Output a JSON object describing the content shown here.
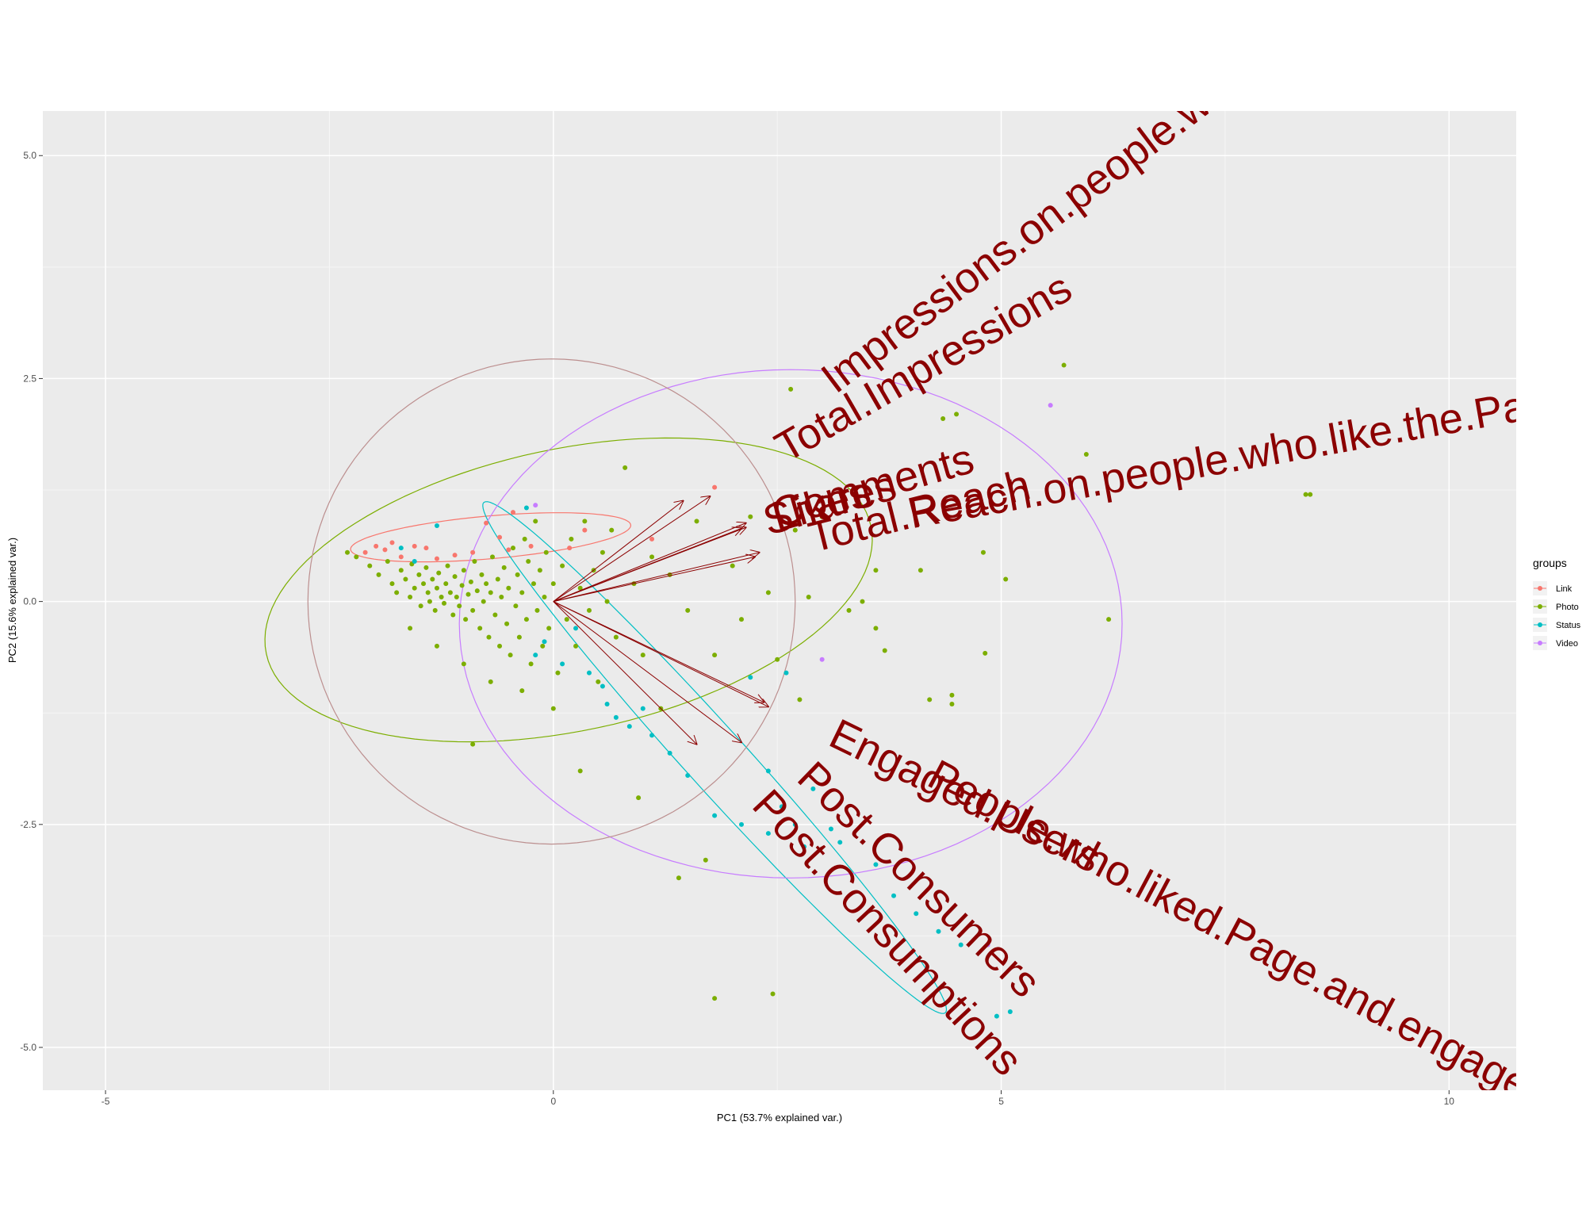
{
  "chart_data": {
    "type": "scatter",
    "title": "",
    "xlabel": "PC1 (53.7% explained var.)",
    "ylabel": "PC2 (15.6% explained var.)",
    "xlim": [
      -5.7,
      10.75
    ],
    "ylim": [
      -5.48,
      5.5
    ],
    "x_ticks": [
      -5,
      0,
      5,
      10
    ],
    "y_ticks": [
      -5.0,
      -2.5,
      0.0,
      2.5,
      5.0
    ],
    "x_tick_labels": [
      "-5",
      "0",
      "5",
      "10"
    ],
    "y_tick_labels": [
      "-5.0",
      "-2.5",
      "0.0",
      "2.5",
      "5.0"
    ],
    "grid": true,
    "legend": {
      "title": "groups",
      "placement": "right",
      "entries": [
        {
          "name": "Link",
          "color": "#F8766D"
        },
        {
          "name": "Photo",
          "color": "#7CAE00"
        },
        {
          "name": "Status",
          "color": "#00BFC4"
        },
        {
          "name": "Video",
          "color": "#C77CFF"
        }
      ]
    },
    "series": [
      {
        "name": "Link",
        "color": "#F8766D",
        "points": [
          [
            -2.1,
            0.55
          ],
          [
            -1.98,
            0.62
          ],
          [
            -1.88,
            0.58
          ],
          [
            -1.8,
            0.66
          ],
          [
            -1.7,
            0.5
          ],
          [
            -1.55,
            0.62
          ],
          [
            -1.42,
            0.6
          ],
          [
            -1.3,
            0.48
          ],
          [
            -1.1,
            0.52
          ],
          [
            -0.9,
            0.55
          ],
          [
            -0.75,
            0.88
          ],
          [
            -0.6,
            0.72
          ],
          [
            -0.5,
            0.58
          ],
          [
            -0.45,
            1.0
          ],
          [
            -0.25,
            0.62
          ],
          [
            0.18,
            0.6
          ],
          [
            0.35,
            0.8
          ],
          [
            1.1,
            0.7
          ],
          [
            1.8,
            1.28
          ]
        ]
      },
      {
        "name": "Photo",
        "color": "#7CAE00",
        "points": [
          [
            -2.3,
            0.55
          ],
          [
            -2.2,
            0.5
          ],
          [
            -2.05,
            0.4
          ],
          [
            -1.95,
            0.3
          ],
          [
            -1.85,
            0.45
          ],
          [
            -1.8,
            0.2
          ],
          [
            -1.75,
            0.1
          ],
          [
            -1.7,
            0.35
          ],
          [
            -1.65,
            0.25
          ],
          [
            -1.6,
            0.05
          ],
          [
            -1.58,
            0.42
          ],
          [
            -1.55,
            0.15
          ],
          [
            -1.5,
            0.3
          ],
          [
            -1.48,
            -0.05
          ],
          [
            -1.45,
            0.2
          ],
          [
            -1.42,
            0.38
          ],
          [
            -1.4,
            0.1
          ],
          [
            -1.38,
            0.0
          ],
          [
            -1.35,
            0.25
          ],
          [
            -1.32,
            -0.1
          ],
          [
            -1.3,
            0.15
          ],
          [
            -1.28,
            0.32
          ],
          [
            -1.25,
            0.05
          ],
          [
            -1.22,
            -0.02
          ],
          [
            -1.2,
            0.2
          ],
          [
            -1.18,
            0.4
          ],
          [
            -1.15,
            0.1
          ],
          [
            -1.12,
            -0.15
          ],
          [
            -1.1,
            0.28
          ],
          [
            -1.08,
            0.05
          ],
          [
            -1.05,
            -0.05
          ],
          [
            -1.02,
            0.18
          ],
          [
            -1.0,
            0.35
          ],
          [
            -0.98,
            -0.2
          ],
          [
            -0.95,
            0.08
          ],
          [
            -0.92,
            0.22
          ],
          [
            -0.9,
            -0.1
          ],
          [
            -0.88,
            0.45
          ],
          [
            -0.85,
            0.12
          ],
          [
            -0.82,
            -0.3
          ],
          [
            -0.8,
            0.3
          ],
          [
            -0.78,
            0.0
          ],
          [
            -0.75,
            0.2
          ],
          [
            -0.72,
            -0.4
          ],
          [
            -0.7,
            0.1
          ],
          [
            -0.68,
            0.5
          ],
          [
            -0.65,
            -0.15
          ],
          [
            -0.62,
            0.25
          ],
          [
            -0.6,
            -0.5
          ],
          [
            -0.58,
            0.05
          ],
          [
            -0.55,
            0.38
          ],
          [
            -0.52,
            -0.25
          ],
          [
            -0.5,
            0.15
          ],
          [
            -0.48,
            -0.6
          ],
          [
            -0.45,
            0.6
          ],
          [
            -0.42,
            -0.05
          ],
          [
            -0.4,
            0.3
          ],
          [
            -0.38,
            -0.4
          ],
          [
            -0.35,
            0.1
          ],
          [
            -0.32,
            0.7
          ],
          [
            -0.3,
            -0.2
          ],
          [
            -0.28,
            0.45
          ],
          [
            -0.25,
            -0.7
          ],
          [
            -0.22,
            0.2
          ],
          [
            -0.2,
            0.9
          ],
          [
            -0.18,
            -0.1
          ],
          [
            -0.15,
            0.35
          ],
          [
            -0.12,
            -0.5
          ],
          [
            -0.1,
            0.05
          ],
          [
            -0.08,
            0.55
          ],
          [
            -0.05,
            -0.3
          ],
          [
            0.0,
            0.2
          ],
          [
            0.05,
            -0.8
          ],
          [
            0.1,
            0.4
          ],
          [
            0.15,
            -0.2
          ],
          [
            0.2,
            0.7
          ],
          [
            0.25,
            -0.5
          ],
          [
            0.3,
            0.15
          ],
          [
            0.35,
            0.9
          ],
          [
            0.4,
            -0.1
          ],
          [
            0.45,
            0.35
          ],
          [
            0.5,
            -0.9
          ],
          [
            0.55,
            0.55
          ],
          [
            0.6,
            0.0
          ],
          [
            0.65,
            0.8
          ],
          [
            0.7,
            -0.4
          ],
          [
            0.8,
            1.5
          ],
          [
            0.9,
            0.2
          ],
          [
            1.0,
            -0.6
          ],
          [
            1.1,
            0.5
          ],
          [
            1.2,
            -1.2
          ],
          [
            1.3,
            0.3
          ],
          [
            1.5,
            -0.1
          ],
          [
            1.6,
            0.9
          ],
          [
            1.8,
            -0.6
          ],
          [
            2.0,
            0.4
          ],
          [
            2.1,
            -0.2
          ],
          [
            2.2,
            0.95
          ],
          [
            2.4,
            0.1
          ],
          [
            2.5,
            -0.65
          ],
          [
            2.65,
            2.38
          ],
          [
            2.7,
            0.8
          ],
          [
            2.75,
            -1.1
          ],
          [
            2.85,
            0.05
          ],
          [
            3.0,
            0.95
          ],
          [
            3.3,
            -0.1
          ],
          [
            3.45,
            0.0
          ],
          [
            3.6,
            0.35
          ],
          [
            3.6,
            -0.3
          ],
          [
            3.7,
            -0.55
          ],
          [
            4.1,
            0.35
          ],
          [
            4.2,
            -1.1
          ],
          [
            4.35,
            2.05
          ],
          [
            4.5,
            2.1
          ],
          [
            4.45,
            -1.05
          ],
          [
            4.45,
            -1.15
          ],
          [
            4.8,
            0.55
          ],
          [
            4.82,
            -0.58
          ],
          [
            5.05,
            0.25
          ],
          [
            5.7,
            2.65
          ],
          [
            5.95,
            1.65
          ],
          [
            6.2,
            -0.2
          ],
          [
            8.4,
            1.2
          ],
          [
            8.45,
            1.2
          ],
          [
            -0.9,
            -1.6
          ],
          [
            0.3,
            -1.9
          ],
          [
            1.4,
            -3.1
          ],
          [
            1.7,
            -2.9
          ],
          [
            1.8,
            -4.45
          ],
          [
            2.45,
            -4.4
          ],
          [
            0.95,
            -2.2
          ],
          [
            -1.6,
            -0.3
          ],
          [
            -1.3,
            -0.5
          ],
          [
            -1.0,
            -0.7
          ],
          [
            -0.7,
            -0.9
          ],
          [
            -0.35,
            -1.0
          ],
          [
            0.0,
            -1.2
          ]
        ]
      },
      {
        "name": "Status",
        "color": "#00BFC4",
        "points": [
          [
            -1.7,
            0.6
          ],
          [
            -1.55,
            0.45
          ],
          [
            -1.3,
            0.85
          ],
          [
            -0.3,
            1.05
          ],
          [
            -0.2,
            -0.6
          ],
          [
            -0.1,
            -0.45
          ],
          [
            0.1,
            -0.7
          ],
          [
            0.25,
            -0.3
          ],
          [
            0.4,
            -0.8
          ],
          [
            0.55,
            -0.95
          ],
          [
            0.6,
            -1.15
          ],
          [
            0.7,
            -1.3
          ],
          [
            0.85,
            -1.4
          ],
          [
            1.0,
            -1.2
          ],
          [
            1.1,
            -1.5
          ],
          [
            1.3,
            -1.7
          ],
          [
            1.5,
            -1.95
          ],
          [
            1.8,
            -2.4
          ],
          [
            2.1,
            -2.5
          ],
          [
            2.4,
            -2.6
          ],
          [
            2.4,
            -1.9
          ],
          [
            2.55,
            -2.3
          ],
          [
            2.7,
            -2.5
          ],
          [
            2.8,
            -2.75
          ],
          [
            2.9,
            -2.1
          ],
          [
            3.1,
            -2.55
          ],
          [
            3.2,
            -2.7
          ],
          [
            3.6,
            -2.95
          ],
          [
            3.8,
            -3.3
          ],
          [
            4.05,
            -3.5
          ],
          [
            4.3,
            -3.7
          ],
          [
            4.55,
            -3.85
          ],
          [
            4.95,
            -4.65
          ],
          [
            5.1,
            -4.6
          ],
          [
            2.2,
            -0.85
          ],
          [
            2.6,
            -0.8
          ]
        ]
      },
      {
        "name": "Video",
        "color": "#C77CFF",
        "points": [
          [
            -0.2,
            1.08
          ],
          [
            3.0,
            -0.65
          ],
          [
            4.85,
            -3.85
          ],
          [
            5.55,
            2.2
          ]
        ]
      }
    ],
    "ellipses": [
      {
        "group": "Link",
        "color": "#F8766D",
        "cx": -0.7,
        "cy": 0.72,
        "rx": 1.57,
        "ry": 0.24,
        "angle": 5
      },
      {
        "group": "Photo",
        "color": "#7CAE00",
        "cx": 0.17,
        "cy": 0.13,
        "rx": 3.45,
        "ry": 1.58,
        "angle": 12
      },
      {
        "group": "Status",
        "color": "#00BFC4",
        "cx": 1.8,
        "cy": -1.75,
        "rx": 3.85,
        "ry": 0.34,
        "angle": -48
      },
      {
        "group": "Video",
        "color": "#C77CFF",
        "cx": 2.65,
        "cy": -0.25,
        "rx": 3.7,
        "ry": 2.85,
        "angle": 0
      },
      {
        "group": "",
        "color": "#BC8F8F",
        "cx": -0.02,
        "cy": 0.0,
        "rx": 2.72,
        "ry": 2.72,
        "angle": 0
      }
    ],
    "loadings": [
      {
        "label": "Impressions.on.people.who",
        "x": 1.75,
        "y": 1.18,
        "lx": 3.15,
        "ly": 2.32,
        "angle": -37
      },
      {
        "label": "Total.Impressions",
        "x": 1.45,
        "y": 1.13,
        "lx": 2.6,
        "ly": 1.55,
        "angle": -30
      },
      {
        "label": "Comments",
        "x": 2.15,
        "y": 0.88,
        "lx": 2.5,
        "ly": 0.82,
        "angle": -16
      },
      {
        "label": "Likes",
        "x": 2.15,
        "y": 0.83,
        "lx": 2.5,
        "ly": 0.78,
        "angle": -16
      },
      {
        "label": "Shares",
        "x": 2.1,
        "y": 0.82,
        "lx": 2.4,
        "ly": 0.74,
        "angle": -16
      },
      {
        "label": "Total.Reach",
        "x": 2.3,
        "y": 0.55,
        "lx": 2.9,
        "ly": 0.55,
        "angle": -14
      },
      {
        "label": "Reach.on.people.who.like.the.Page",
        "x": 2.25,
        "y": 0.5,
        "lx": 4.0,
        "ly": 0.82,
        "angle": -10
      },
      {
        "label": "Engaged.Users",
        "x": 2.4,
        "y": -1.18,
        "lx": 3.05,
        "ly": -1.6,
        "angle": 26
      },
      {
        "label": "People.who.liked.Page.and.engaged.with.post",
        "x": 2.35,
        "y": -1.13,
        "lx": 4.15,
        "ly": -2.05,
        "angle": 28
      },
      {
        "label": "Post.Consumers",
        "x": 2.1,
        "y": -1.58,
        "lx": 2.7,
        "ly": -2.0,
        "angle": 44
      },
      {
        "label": "Post.Consumptions",
        "x": 1.6,
        "y": -1.6,
        "lx": 2.2,
        "ly": -2.3,
        "angle": 47
      }
    ]
  }
}
